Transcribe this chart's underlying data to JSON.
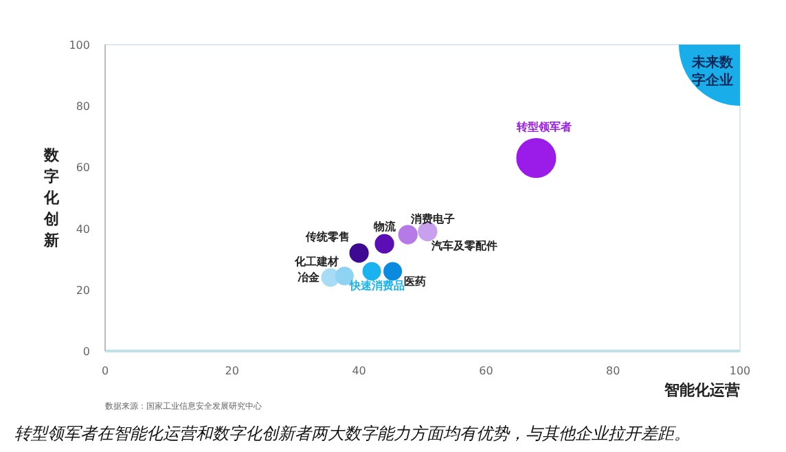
{
  "chart_data": {
    "type": "bubble",
    "xlabel": "智能化运营",
    "ylabel": "数字化创新",
    "annotations": [
      "未来数字企业",
      "数据来源：国家工业信息安全发展研究中心",
      "转型领军者在智能化运营和数字化创新者两大数字能力方面均有优势，与其他企业拉开差距。"
    ],
    "xlim": [
      0,
      100
    ],
    "ylim": [
      0,
      100
    ],
    "xticks": [
      0,
      20,
      40,
      60,
      80,
      100
    ],
    "yticks": [
      0,
      20,
      40,
      60,
      80,
      100
    ],
    "series": [
      {
        "name": "冶金",
        "color": "#a8dcf5",
        "x": [
          35.5
        ],
        "values": [
          24
        ],
        "sizes": [
          0.2
        ]
      },
      {
        "name": "化工建材",
        "color": "#8fd3f3",
        "x": [
          37.7
        ],
        "values": [
          24.5
        ],
        "sizes": [
          0.2
        ]
      },
      {
        "name": "传统零售",
        "color": "#3d0a91",
        "x": [
          40
        ],
        "values": [
          32
        ],
        "sizes": [
          0.22
        ]
      },
      {
        "name": "物流",
        "color": "#5a0fb4",
        "x": [
          44
        ],
        "values": [
          35
        ],
        "sizes": [
          0.22
        ]
      },
      {
        "name": "快速消费品",
        "color": "#1ab3f0",
        "x": [
          42
        ],
        "values": [
          26
        ],
        "sizes": [
          0.2
        ]
      },
      {
        "name": "医药",
        "color": "#0a8be0",
        "x": [
          45.3
        ],
        "values": [
          26
        ],
        "sizes": [
          0.2
        ]
      },
      {
        "name": "消费电子",
        "color": "#b57ae6",
        "x": [
          47.7
        ],
        "values": [
          38
        ],
        "sizes": [
          0.22
        ]
      },
      {
        "name": "汽车及零配件",
        "color": "#c9a0ee",
        "x": [
          50.8
        ],
        "values": [
          39
        ],
        "sizes": [
          0.22
        ]
      },
      {
        "name": "转型领军者",
        "color": "#9b1be8",
        "x": [
          67.9
        ],
        "values": [
          63
        ],
        "sizes": [
          1
        ]
      }
    ]
  }
}
